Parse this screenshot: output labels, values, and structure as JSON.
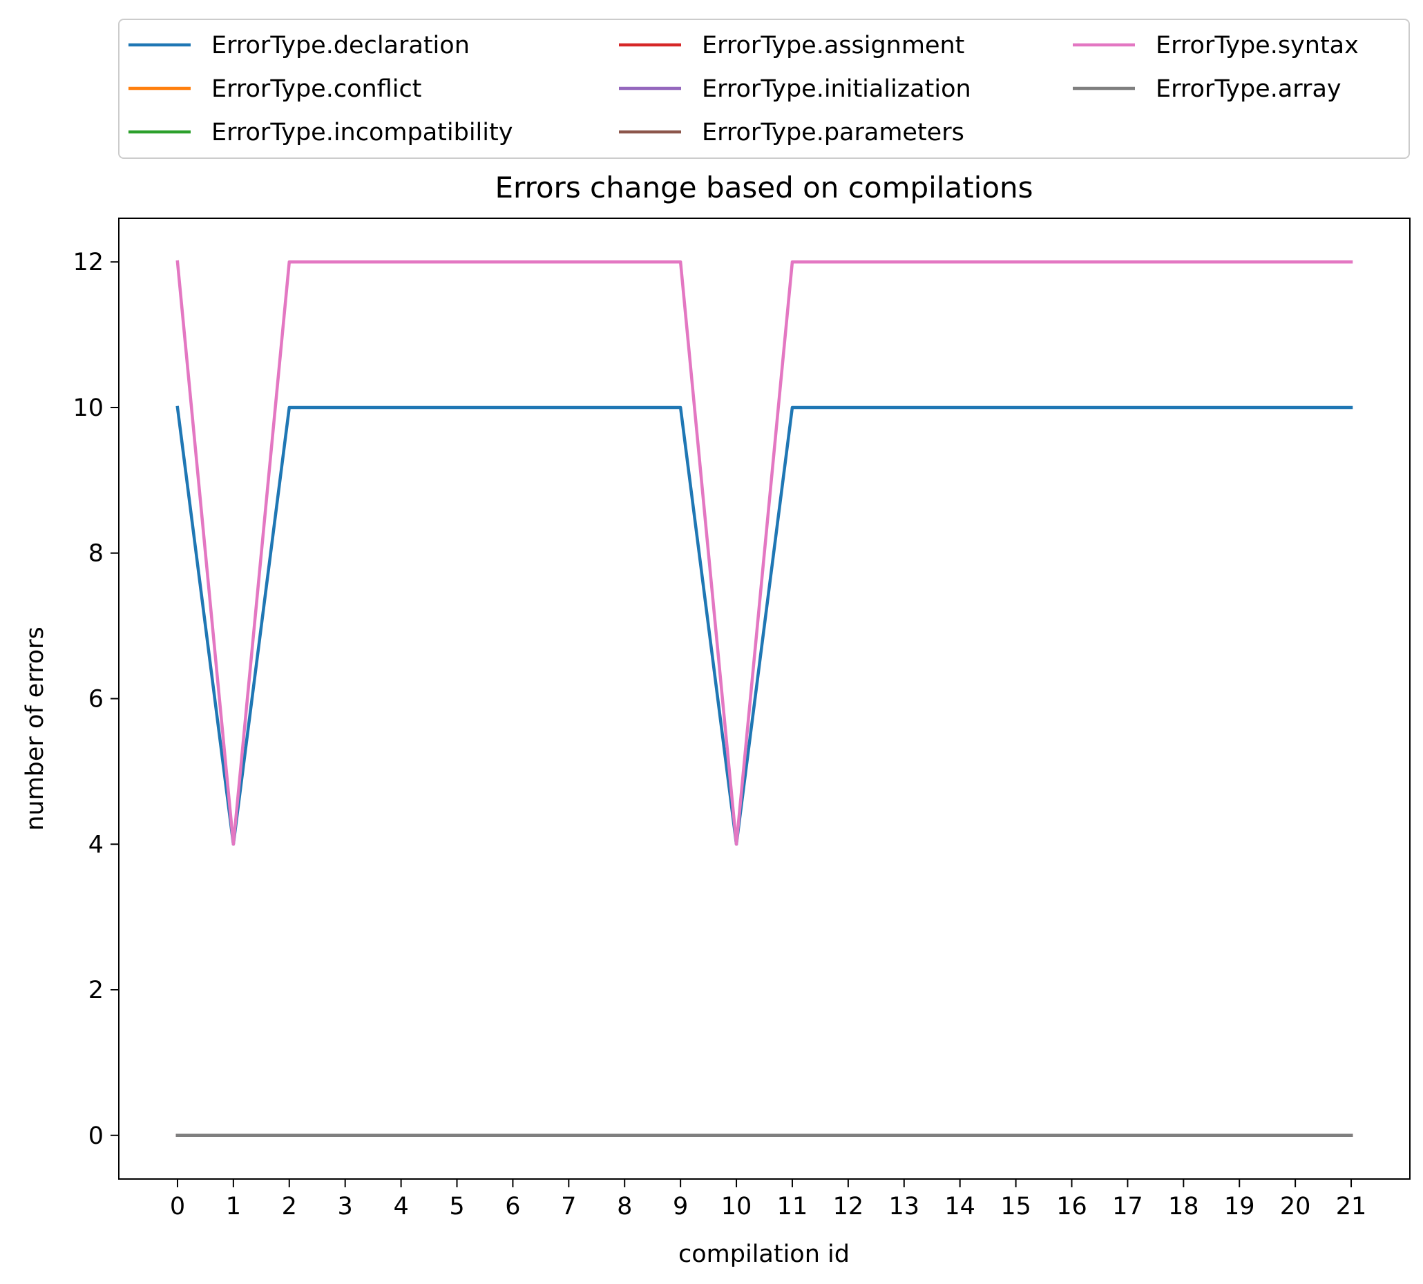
{
  "chart_data": {
    "type": "line",
    "title": "Errors change based on compilations",
    "xlabel": "compilation id",
    "ylabel": "number of errors",
    "xlim": [
      -1.05,
      22.05
    ],
    "ylim": [
      -0.6,
      12.6
    ],
    "xticks": [
      0,
      1,
      2,
      3,
      4,
      5,
      6,
      7,
      8,
      9,
      10,
      11,
      12,
      13,
      14,
      15,
      16,
      17,
      18,
      19,
      20,
      21
    ],
    "yticks": [
      0,
      2,
      4,
      6,
      8,
      10,
      12
    ],
    "grid": false,
    "legend_position": "top (above plot)",
    "x": [
      0,
      1,
      2,
      3,
      4,
      5,
      6,
      7,
      8,
      9,
      10,
      11,
      12,
      13,
      14,
      15,
      16,
      17,
      18,
      19,
      20,
      21
    ],
    "series": [
      {
        "name": "ErrorType.declaration",
        "color": "#1f77b4",
        "values": [
          10,
          4,
          10,
          10,
          10,
          10,
          10,
          10,
          10,
          10,
          4,
          10,
          10,
          10,
          10,
          10,
          10,
          10,
          10,
          10,
          10,
          10
        ]
      },
      {
        "name": "ErrorType.conflict",
        "color": "#ff7f0e",
        "values": [
          0,
          0,
          0,
          0,
          0,
          0,
          0,
          0,
          0,
          0,
          0,
          0,
          0,
          0,
          0,
          0,
          0,
          0,
          0,
          0,
          0,
          0
        ]
      },
      {
        "name": "ErrorType.incompatibility",
        "color": "#2ca02c",
        "values": [
          0,
          0,
          0,
          0,
          0,
          0,
          0,
          0,
          0,
          0,
          0,
          0,
          0,
          0,
          0,
          0,
          0,
          0,
          0,
          0,
          0,
          0
        ]
      },
      {
        "name": "ErrorType.assignment",
        "color": "#d62728",
        "values": [
          0,
          0,
          0,
          0,
          0,
          0,
          0,
          0,
          0,
          0,
          0,
          0,
          0,
          0,
          0,
          0,
          0,
          0,
          0,
          0,
          0,
          0
        ]
      },
      {
        "name": "ErrorType.initialization",
        "color": "#9467bd",
        "values": [
          0,
          0,
          0,
          0,
          0,
          0,
          0,
          0,
          0,
          0,
          0,
          0,
          0,
          0,
          0,
          0,
          0,
          0,
          0,
          0,
          0,
          0
        ]
      },
      {
        "name": "ErrorType.parameters",
        "color": "#8c564b",
        "values": [
          0,
          0,
          0,
          0,
          0,
          0,
          0,
          0,
          0,
          0,
          0,
          0,
          0,
          0,
          0,
          0,
          0,
          0,
          0,
          0,
          0,
          0
        ]
      },
      {
        "name": "ErrorType.syntax",
        "color": "#e377c2",
        "values": [
          12,
          4,
          12,
          12,
          12,
          12,
          12,
          12,
          12,
          12,
          4,
          12,
          12,
          12,
          12,
          12,
          12,
          12,
          12,
          12,
          12,
          12
        ]
      },
      {
        "name": "ErrorType.array",
        "color": "#7f7f7f",
        "values": [
          0,
          0,
          0,
          0,
          0,
          0,
          0,
          0,
          0,
          0,
          0,
          0,
          0,
          0,
          0,
          0,
          0,
          0,
          0,
          0,
          0,
          0
        ]
      }
    ]
  }
}
